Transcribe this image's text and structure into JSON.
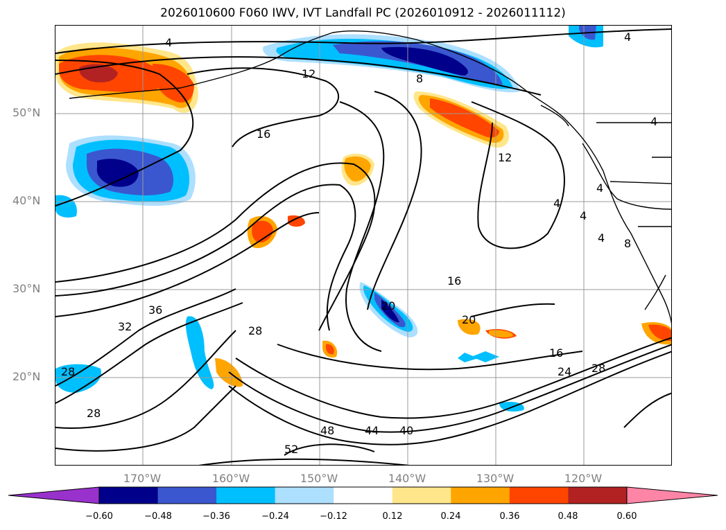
{
  "title": "2026010600 F060 IWV, IVT Landfall PC (2026010912 - 2026011112)",
  "lat_labels": [
    "50°N",
    "40°N",
    "30°N",
    "20°N"
  ],
  "lon_labels": [
    "170°W",
    "160°W",
    "150°W",
    "140°W",
    "130°W",
    "120°W"
  ],
  "contour_labels": [
    "4",
    "12",
    "8",
    "4",
    "4",
    "16",
    "12",
    "4",
    "4",
    "4",
    "4",
    "8",
    "16",
    "36",
    "32",
    "28",
    "20",
    "20",
    "16",
    "24",
    "28",
    "28",
    "28",
    "48",
    "44",
    "40",
    "52"
  ],
  "colorbar": {
    "ticks": [
      "−0.60",
      "−0.48",
      "−0.36",
      "−0.24",
      "−0.12",
      "0.12",
      "0.24",
      "0.36",
      "0.48",
      "0.60"
    ],
    "colors": [
      "#9932cc",
      "#00008b",
      "#3a57cf",
      "#00bfff",
      "#addfff",
      "#ffffff",
      "#ffe68a",
      "#ffa500",
      "#ff4500",
      "#b22222",
      "#ff85a6"
    ]
  }
}
